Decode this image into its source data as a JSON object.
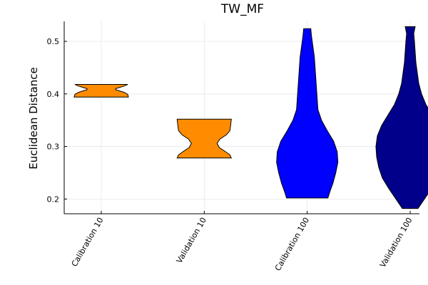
{
  "chart_data": {
    "type": "violin",
    "title": "TW_MF",
    "xlabel": "",
    "ylabel": "Euclidean Distance",
    "ylim": [
      0.172,
      0.538
    ],
    "yticks": [
      0.2,
      0.3,
      0.4,
      0.5
    ],
    "ytick_labels": [
      "0.2",
      "0.3",
      "0.4",
      "0.5"
    ],
    "grid": true,
    "legend": "none",
    "categories": [
      "Calibration 10",
      "Validation 10",
      "Calibration 100",
      "Validation 100"
    ],
    "series": [
      {
        "category": "Calibration 10",
        "color": "#ff8c00",
        "profile": [
          [
            0.394,
            38
          ],
          [
            0.399,
            37
          ],
          [
            0.403,
            32
          ],
          [
            0.406,
            25
          ],
          [
            0.408,
            20
          ],
          [
            0.41,
            20
          ],
          [
            0.412,
            25
          ],
          [
            0.415,
            32
          ],
          [
            0.418,
            37
          ]
        ]
      },
      {
        "category": "Validation 10",
        "color": "#ff8c00",
        "profile": [
          [
            0.278,
            38
          ],
          [
            0.284,
            36
          ],
          [
            0.29,
            30
          ],
          [
            0.298,
            21
          ],
          [
            0.306,
            18
          ],
          [
            0.314,
            22
          ],
          [
            0.322,
            31
          ],
          [
            0.33,
            36
          ],
          [
            0.34,
            37
          ],
          [
            0.352,
            38
          ]
        ]
      },
      {
        "category": "Calibration 100",
        "color": "#0000ff",
        "profile": [
          [
            0.202,
            29
          ],
          [
            0.215,
            32
          ],
          [
            0.23,
            36
          ],
          [
            0.25,
            40
          ],
          [
            0.27,
            43
          ],
          [
            0.29,
            42
          ],
          [
            0.31,
            37
          ],
          [
            0.33,
            28
          ],
          [
            0.35,
            20
          ],
          [
            0.37,
            15
          ],
          [
            0.39,
            14
          ],
          [
            0.41,
            13
          ],
          [
            0.43,
            12
          ],
          [
            0.45,
            11
          ],
          [
            0.47,
            10
          ],
          [
            0.49,
            8
          ],
          [
            0.51,
            6
          ],
          [
            0.524,
            5
          ]
        ]
      },
      {
        "category": "Validation 100",
        "color": "#00008b",
        "profile": [
          [
            0.182,
            11
          ],
          [
            0.19,
            15
          ],
          [
            0.2,
            20
          ],
          [
            0.22,
            30
          ],
          [
            0.24,
            39
          ],
          [
            0.26,
            44
          ],
          [
            0.28,
            47
          ],
          [
            0.3,
            48
          ],
          [
            0.32,
            46
          ],
          [
            0.34,
            40
          ],
          [
            0.36,
            31
          ],
          [
            0.38,
            22
          ],
          [
            0.4,
            16
          ],
          [
            0.42,
            12
          ],
          [
            0.44,
            10
          ],
          [
            0.46,
            8
          ],
          [
            0.48,
            7
          ],
          [
            0.5,
            6
          ],
          [
            0.515,
            5
          ],
          [
            0.528,
            7
          ]
        ]
      }
    ]
  }
}
